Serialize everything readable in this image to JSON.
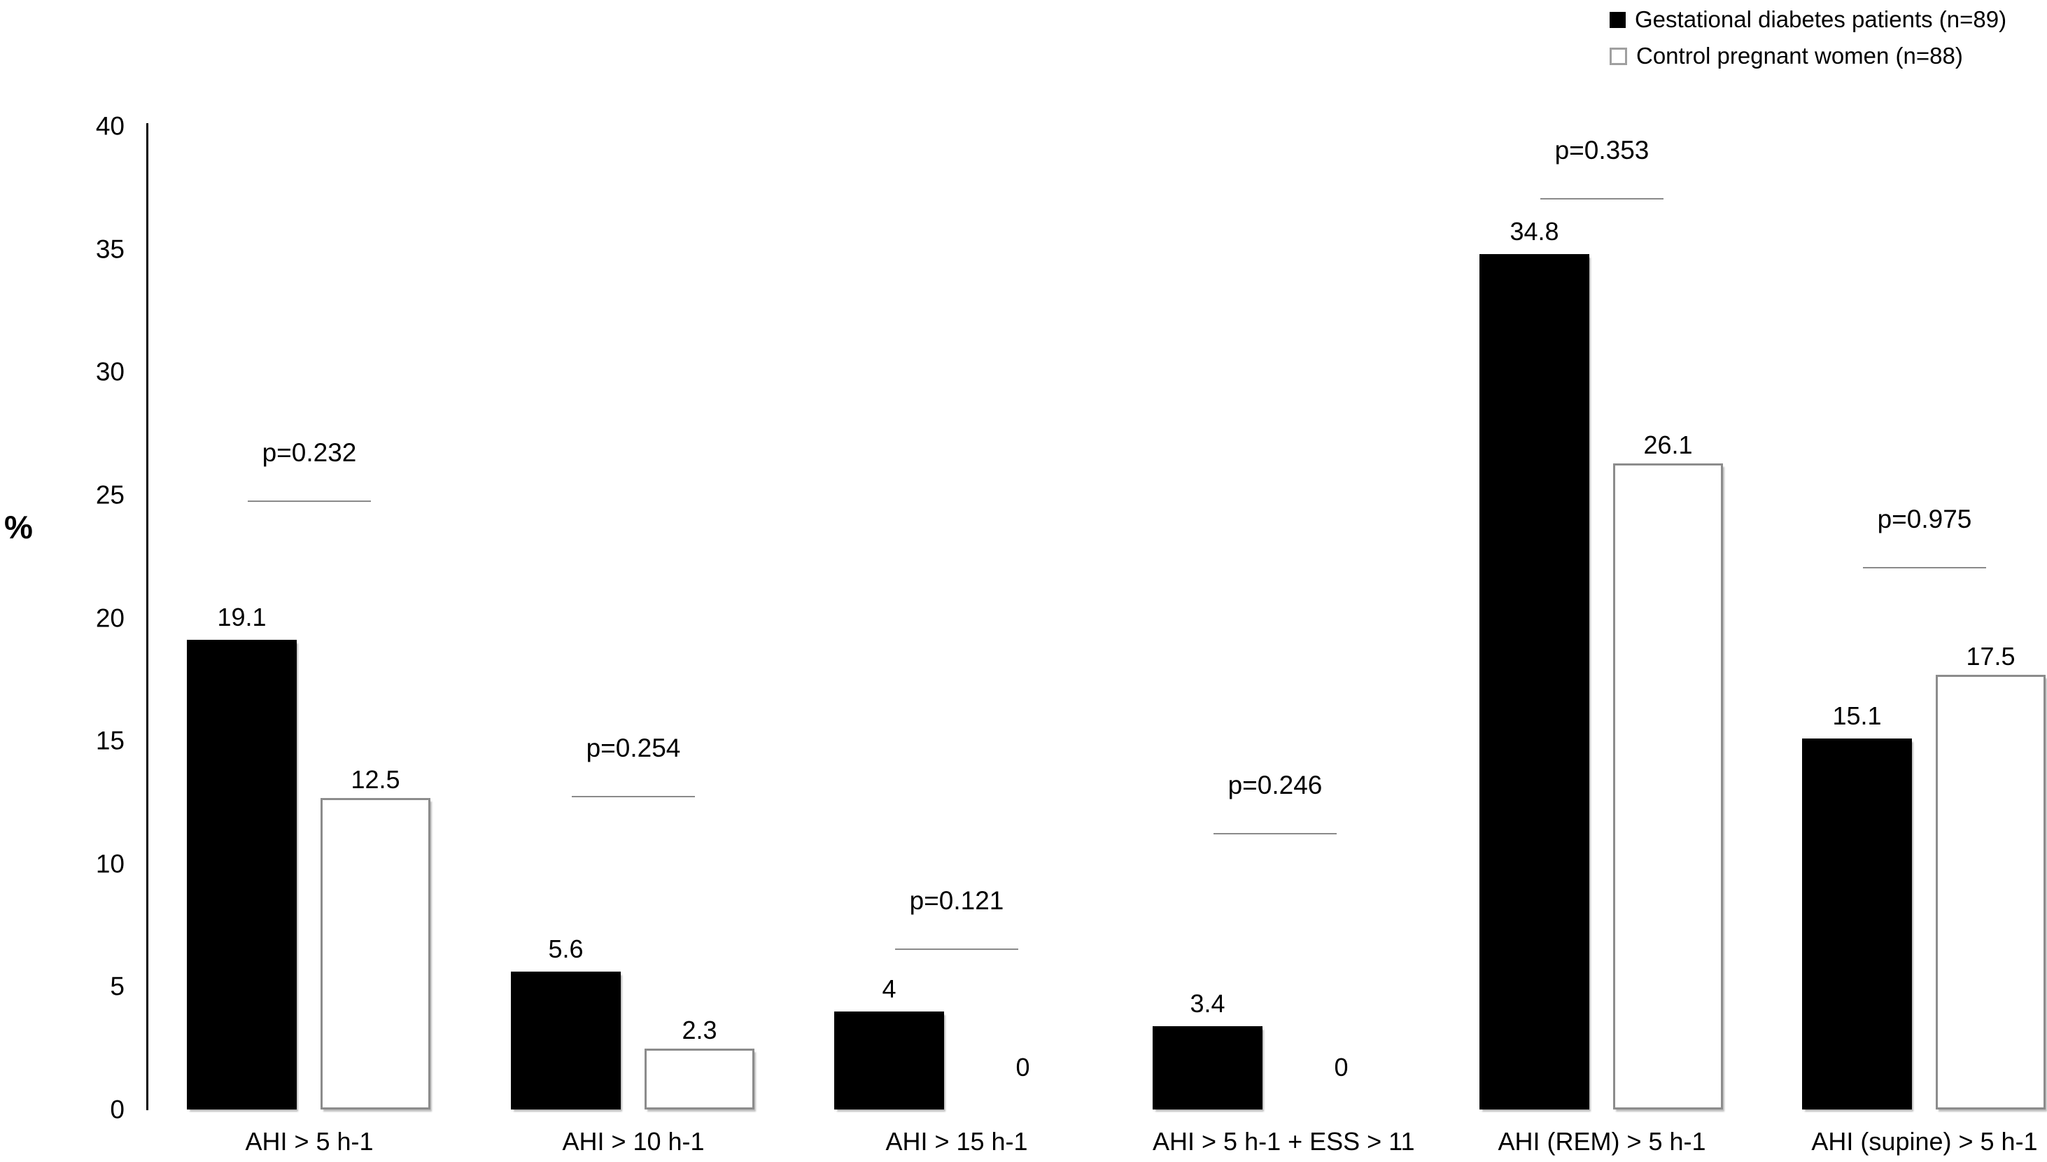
{
  "legend": [
    {
      "swatch": "black",
      "label": "Gestational diabetes patients (n=89)"
    },
    {
      "swatch": "white",
      "label": "Control pregnant women (n=88)"
    }
  ],
  "y_axis": {
    "label": "%",
    "ticks": [
      0,
      5,
      10,
      15,
      20,
      25,
      30,
      35,
      40
    ]
  },
  "chart_data": {
    "type": "bar",
    "title": "",
    "xlabel": "",
    "ylabel": "%",
    "ylim": [
      0,
      40
    ],
    "grid": false,
    "legend_position": "top-right",
    "categories": [
      "AHI > 5 h-1",
      "AHI > 10 h-1",
      "AHI > 15 h-1",
      "AHI > 5 h-1  + ESS > 11",
      "AHI (REM) > 5 h-1",
      "AHI (supine) > 5 h-1"
    ],
    "series": [
      {
        "name": "Gestational diabetes patients (n=89)",
        "color": "#000000",
        "values": [
          19.1,
          5.6,
          4,
          3.4,
          34.8,
          15.1
        ]
      },
      {
        "name": "Control pregnant women (n=88)",
        "color": "#ffffff",
        "values": [
          12.5,
          2.3,
          0,
          0,
          26.1,
          17.5
        ]
      }
    ],
    "value_labels": [
      [
        "19.1",
        "12.5"
      ],
      [
        "5.6",
        "2.3"
      ],
      [
        "4",
        "0"
      ],
      [
        "3.4",
        "0"
      ],
      [
        "34.8",
        "26.1"
      ],
      [
        "15.1",
        "17.5"
      ]
    ],
    "p_values": [
      "p=0.232",
      "p=0.254",
      "p=0.121",
      "p=0.246",
      "p=0.353",
      "p=0.975"
    ],
    "p_line_levels": [
      24.7,
      12.7,
      6.5,
      11.2,
      37,
      22
    ]
  }
}
